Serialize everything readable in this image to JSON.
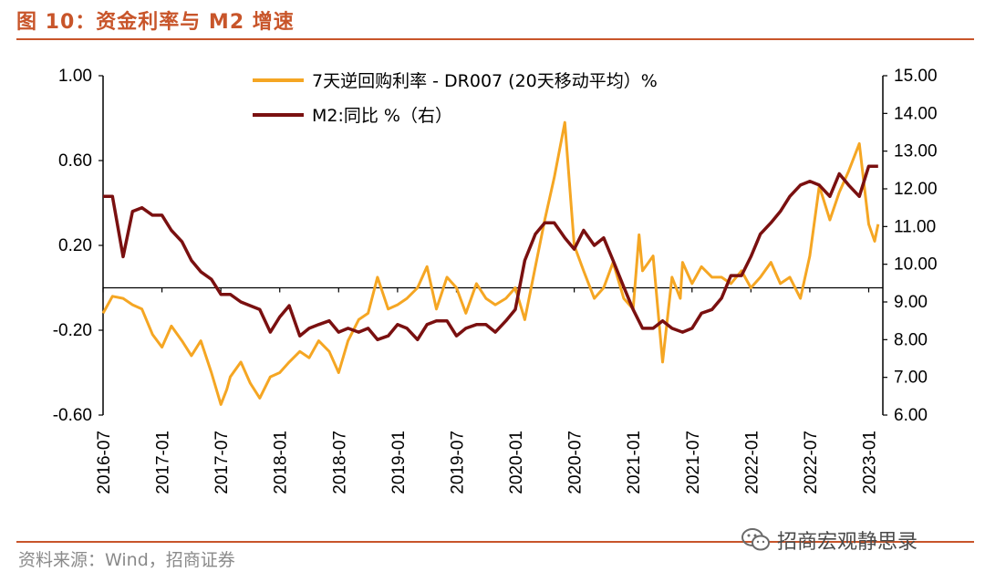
{
  "header": {
    "title": "图 10：资金利率与 M2 增速"
  },
  "footer": {
    "source": "资料来源：Wind，招商证券",
    "watermark": "招商宏观静思录"
  },
  "colors": {
    "accent": "#c8552a",
    "series_orange": "#f5a623",
    "series_maroon": "#7a1010"
  },
  "chart_data": {
    "type": "line",
    "x_ticks": [
      "2016-07",
      "2017-01",
      "2017-07",
      "2018-01",
      "2018-07",
      "2019-01",
      "2019-07",
      "2020-01",
      "2020-07",
      "2021-01",
      "2021-07",
      "2022-01",
      "2022-07",
      "2023-01"
    ],
    "y_left": {
      "ticks": [
        "1.00",
        "0.60",
        "0.20",
        "-0.20",
        "-0.60"
      ],
      "range": [
        -0.6,
        1.0
      ]
    },
    "y_right": {
      "ticks": [
        "15.00",
        "14.00",
        "13.00",
        "12.00",
        "11.00",
        "10.00",
        "9.00",
        "8.00",
        "7.00",
        "6.00"
      ],
      "range": [
        6.0,
        15.0
      ]
    },
    "series": [
      {
        "name": "7天逆回购利率 - DR007 (20天移动平均）%",
        "axis": "left",
        "x": [
          2016.5,
          2016.58,
          2016.67,
          2016.75,
          2016.83,
          2016.92,
          2017.0,
          2017.08,
          2017.17,
          2017.25,
          2017.33,
          2017.42,
          2017.5,
          2017.55,
          2017.58,
          2017.67,
          2017.75,
          2017.83,
          2017.92,
          2018.0,
          2018.08,
          2018.17,
          2018.25,
          2018.33,
          2018.42,
          2018.5,
          2018.58,
          2018.67,
          2018.75,
          2018.83,
          2018.92,
          2019.0,
          2019.08,
          2019.17,
          2019.25,
          2019.33,
          2019.42,
          2019.5,
          2019.58,
          2019.67,
          2019.75,
          2019.83,
          2019.92,
          2020.0,
          2020.08,
          2020.17,
          2020.25,
          2020.33,
          2020.42,
          2020.5,
          2020.58,
          2020.67,
          2020.75,
          2020.83,
          2020.92,
          2021.0,
          2021.05,
          2021.08,
          2021.17,
          2021.25,
          2021.33,
          2021.4,
          2021.42,
          2021.5,
          2021.58,
          2021.67,
          2021.75,
          2021.83,
          2021.92,
          2022.0,
          2022.08,
          2022.17,
          2022.25,
          2022.33,
          2022.42,
          2022.5,
          2022.58,
          2022.67,
          2022.75,
          2022.83,
          2022.92,
          2023.0,
          2023.05,
          2023.08
        ],
        "values": [
          -0.12,
          -0.04,
          -0.05,
          -0.08,
          -0.1,
          -0.22,
          -0.28,
          -0.18,
          -0.25,
          -0.32,
          -0.25,
          -0.4,
          -0.55,
          -0.48,
          -0.42,
          -0.35,
          -0.45,
          -0.52,
          -0.42,
          -0.4,
          -0.35,
          -0.3,
          -0.33,
          -0.25,
          -0.3,
          -0.4,
          -0.25,
          -0.15,
          -0.12,
          0.05,
          -0.1,
          -0.08,
          -0.05,
          0.0,
          0.1,
          -0.1,
          0.05,
          0.0,
          -0.12,
          0.02,
          -0.05,
          -0.08,
          -0.05,
          0.0,
          -0.15,
          0.1,
          0.32,
          0.52,
          0.78,
          0.2,
          0.08,
          -0.05,
          0.0,
          0.12,
          -0.05,
          -0.1,
          0.25,
          0.08,
          0.15,
          -0.35,
          0.05,
          -0.05,
          0.12,
          0.02,
          0.1,
          0.05,
          0.05,
          0.02,
          0.08,
          0.0,
          0.05,
          0.12,
          0.02,
          0.05,
          -0.05,
          0.15,
          0.48,
          0.32,
          0.45,
          0.55,
          0.68,
          0.3,
          0.22,
          0.3
        ]
      },
      {
        "name": "M2:同比 %（右）",
        "axis": "right",
        "x": [
          2016.5,
          2016.58,
          2016.67,
          2016.75,
          2016.83,
          2016.92,
          2017.0,
          2017.08,
          2017.17,
          2017.25,
          2017.33,
          2017.42,
          2017.5,
          2017.58,
          2017.67,
          2017.75,
          2017.83,
          2017.92,
          2018.0,
          2018.08,
          2018.17,
          2018.25,
          2018.33,
          2018.42,
          2018.5,
          2018.58,
          2018.67,
          2018.75,
          2018.83,
          2018.92,
          2019.0,
          2019.08,
          2019.17,
          2019.25,
          2019.33,
          2019.42,
          2019.5,
          2019.58,
          2019.67,
          2019.75,
          2019.83,
          2019.92,
          2020.0,
          2020.08,
          2020.17,
          2020.25,
          2020.33,
          2020.42,
          2020.5,
          2020.58,
          2020.67,
          2020.75,
          2020.83,
          2020.92,
          2021.0,
          2021.08,
          2021.17,
          2021.25,
          2021.33,
          2021.42,
          2021.5,
          2021.58,
          2021.67,
          2021.75,
          2021.83,
          2021.92,
          2022.0,
          2022.08,
          2022.17,
          2022.25,
          2022.33,
          2022.42,
          2022.5,
          2022.58,
          2022.67,
          2022.75,
          2022.83,
          2022.92,
          2023.0,
          2023.08
        ],
        "values": [
          11.8,
          11.8,
          10.2,
          11.4,
          11.5,
          11.3,
          11.3,
          10.9,
          10.6,
          10.1,
          9.8,
          9.6,
          9.2,
          9.2,
          9.0,
          8.9,
          8.8,
          8.2,
          8.6,
          8.9,
          8.1,
          8.3,
          8.4,
          8.5,
          8.2,
          8.3,
          8.2,
          8.3,
          8.0,
          8.1,
          8.4,
          8.3,
          8.0,
          8.4,
          8.5,
          8.5,
          8.1,
          8.3,
          8.4,
          8.4,
          8.2,
          8.5,
          8.8,
          10.1,
          10.8,
          11.1,
          11.1,
          10.7,
          10.4,
          10.9,
          10.5,
          10.7,
          10.1,
          9.4,
          8.8,
          8.3,
          8.3,
          8.5,
          8.3,
          8.2,
          8.3,
          8.7,
          8.8,
          9.1,
          9.7,
          9.7,
          10.2,
          10.8,
          11.1,
          11.4,
          11.8,
          12.1,
          12.2,
          12.1,
          11.8,
          12.4,
          12.1,
          11.8,
          12.6,
          12.6
        ]
      }
    ],
    "grid": false,
    "legend_position": "top-center"
  }
}
